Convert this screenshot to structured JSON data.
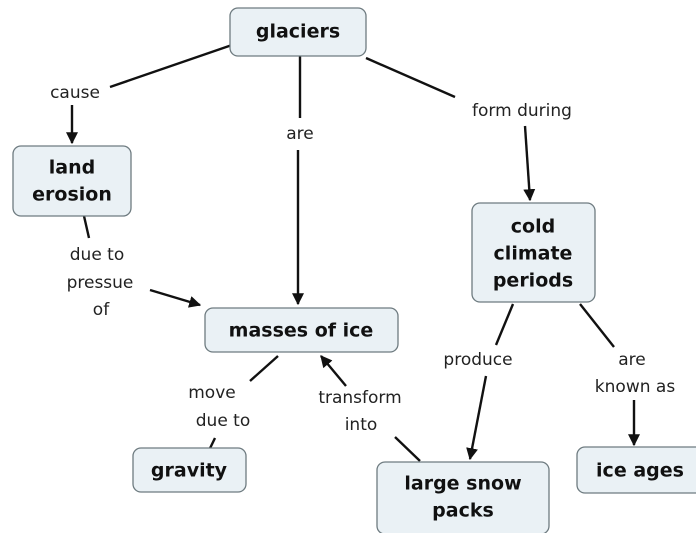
{
  "nodes": [
    {
      "lines": [
        "glaciers"
      ]
    },
    {
      "lines": [
        "land",
        "erosion"
      ]
    },
    {
      "lines": [
        "masses of ice"
      ]
    },
    {
      "lines": [
        "cold",
        "climate",
        "periods"
      ]
    },
    {
      "lines": [
        "gravity"
      ]
    },
    {
      "lines": [
        "large snow",
        "packs"
      ]
    },
    {
      "lines": [
        "ice ages"
      ]
    }
  ],
  "links": [
    {
      "lines": [
        "cause"
      ]
    },
    {
      "lines": [
        "are"
      ]
    },
    {
      "lines": [
        "form during"
      ]
    },
    {
      "lines": [
        "due to",
        "pressue",
        "of"
      ]
    },
    {
      "lines": [
        "move",
        "due to"
      ]
    },
    {
      "lines": [
        "transform",
        "into"
      ]
    },
    {
      "lines": [
        "produce"
      ]
    },
    {
      "lines": [
        "are",
        "known as"
      ]
    }
  ]
}
